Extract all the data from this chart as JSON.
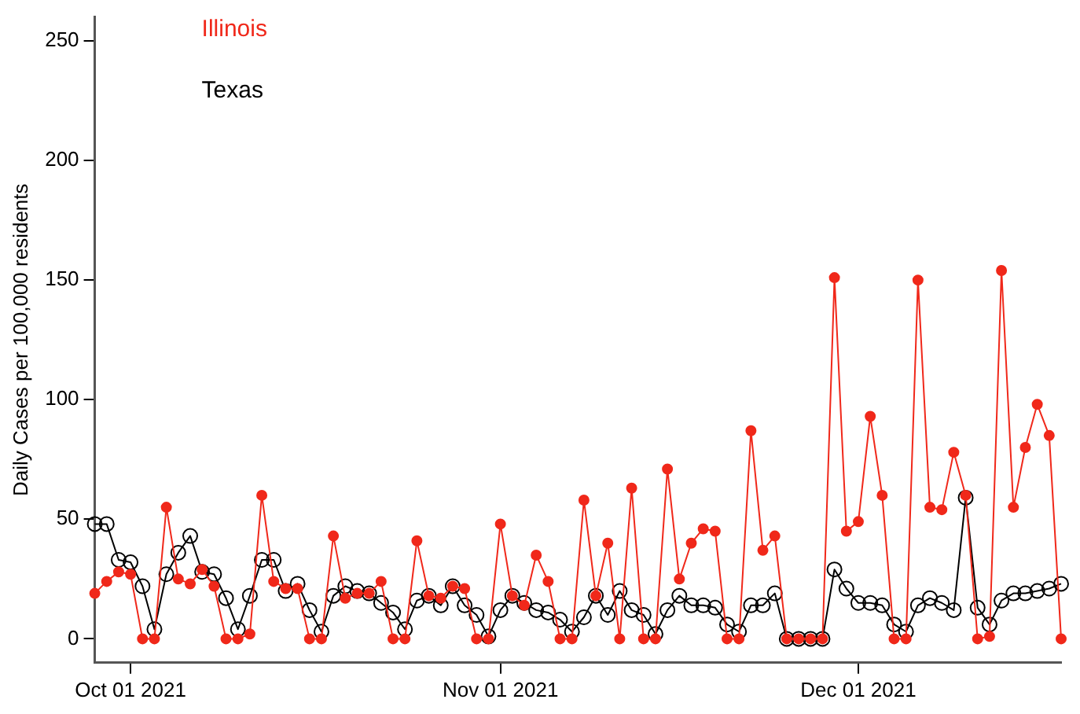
{
  "chart_data": {
    "type": "line",
    "ylabel": "Daily Cases per 100,000 residents",
    "x": [
      "2021-09-28",
      "2021-09-29",
      "2021-09-30",
      "2021-10-01",
      "2021-10-02",
      "2021-10-03",
      "2021-10-04",
      "2021-10-05",
      "2021-10-06",
      "2021-10-07",
      "2021-10-08",
      "2021-10-09",
      "2021-10-10",
      "2021-10-11",
      "2021-10-12",
      "2021-10-13",
      "2021-10-14",
      "2021-10-15",
      "2021-10-16",
      "2021-10-17",
      "2021-10-18",
      "2021-10-19",
      "2021-10-20",
      "2021-10-21",
      "2021-10-22",
      "2021-10-23",
      "2021-10-24",
      "2021-10-25",
      "2021-10-26",
      "2021-10-27",
      "2021-10-28",
      "2021-10-29",
      "2021-10-30",
      "2021-10-31",
      "2021-11-01",
      "2021-11-02",
      "2021-11-03",
      "2021-11-04",
      "2021-11-05",
      "2021-11-06",
      "2021-11-07",
      "2021-11-08",
      "2021-11-09",
      "2021-11-10",
      "2021-11-11",
      "2021-11-12",
      "2021-11-13",
      "2021-11-14",
      "2021-11-15",
      "2021-11-16",
      "2021-11-17",
      "2021-11-18",
      "2021-11-19",
      "2021-11-20",
      "2021-11-21",
      "2021-11-22",
      "2021-11-23",
      "2021-11-24",
      "2021-11-25",
      "2021-11-26",
      "2021-11-27",
      "2021-11-28",
      "2021-11-29",
      "2021-11-30",
      "2021-12-01",
      "2021-12-02",
      "2021-12-03",
      "2021-12-04",
      "2021-12-05",
      "2021-12-06",
      "2021-12-07",
      "2021-12-08",
      "2021-12-09",
      "2021-12-10",
      "2021-12-11",
      "2021-12-12",
      "2021-12-13",
      "2021-12-14",
      "2021-12-15",
      "2021-12-16",
      "2021-12-17",
      "2021-12-18"
    ],
    "series": [
      {
        "name": "Illinois",
        "color": "#f0281a",
        "marker": "circle",
        "values": [
          19,
          24,
          28,
          27,
          0,
          0,
          55,
          25,
          23,
          29,
          22,
          0,
          0,
          2,
          60,
          24,
          21,
          21,
          0,
          0,
          43,
          17,
          19,
          19,
          24,
          0,
          0,
          41,
          18,
          17,
          22,
          21,
          0,
          0,
          48,
          18,
          14,
          35,
          24,
          0,
          0,
          58,
          18,
          40,
          0,
          63,
          0,
          0,
          71,
          25,
          40,
          46,
          45,
          0,
          0,
          87,
          37,
          43,
          0,
          0,
          0,
          0,
          151,
          45,
          49,
          93,
          60,
          0,
          0,
          150,
          55,
          54,
          78,
          60,
          0,
          1,
          154,
          55,
          80,
          98,
          85,
          0
        ]
      },
      {
        "name": "Texas",
        "color": "#000000",
        "marker": "circle",
        "values": [
          48,
          48,
          33,
          32,
          22,
          4,
          27,
          36,
          43,
          28,
          27,
          17,
          4,
          18,
          33,
          33,
          20,
          23,
          12,
          3,
          18,
          22,
          20,
          19,
          15,
          11,
          4,
          16,
          18,
          14,
          22,
          14,
          10,
          1,
          12,
          18,
          15,
          12,
          11,
          8,
          3,
          9,
          18,
          10,
          20,
          12,
          10,
          2,
          12,
          18,
          14,
          14,
          13,
          6,
          3,
          14,
          14,
          19,
          0,
          0,
          0,
          0,
          29,
          21,
          15,
          15,
          14,
          6,
          3,
          14,
          17,
          15,
          12,
          59,
          13,
          6,
          16,
          19,
          19,
          20,
          21,
          23
        ]
      }
    ],
    "xlim": [
      "2021-09-28",
      "2021-12-18"
    ],
    "xticks": [
      {
        "value": "2021-10-01",
        "label": "Oct 01 2021"
      },
      {
        "value": "2021-11-01",
        "label": "Nov 01 2021"
      },
      {
        "value": "2021-12-01",
        "label": "Dec 01 2021"
      }
    ],
    "ylim": [
      -10,
      260
    ],
    "yticks": [
      0,
      50,
      100,
      150,
      200,
      250
    ],
    "grid": false,
    "legend": "top left",
    "line_style": "solid"
  }
}
